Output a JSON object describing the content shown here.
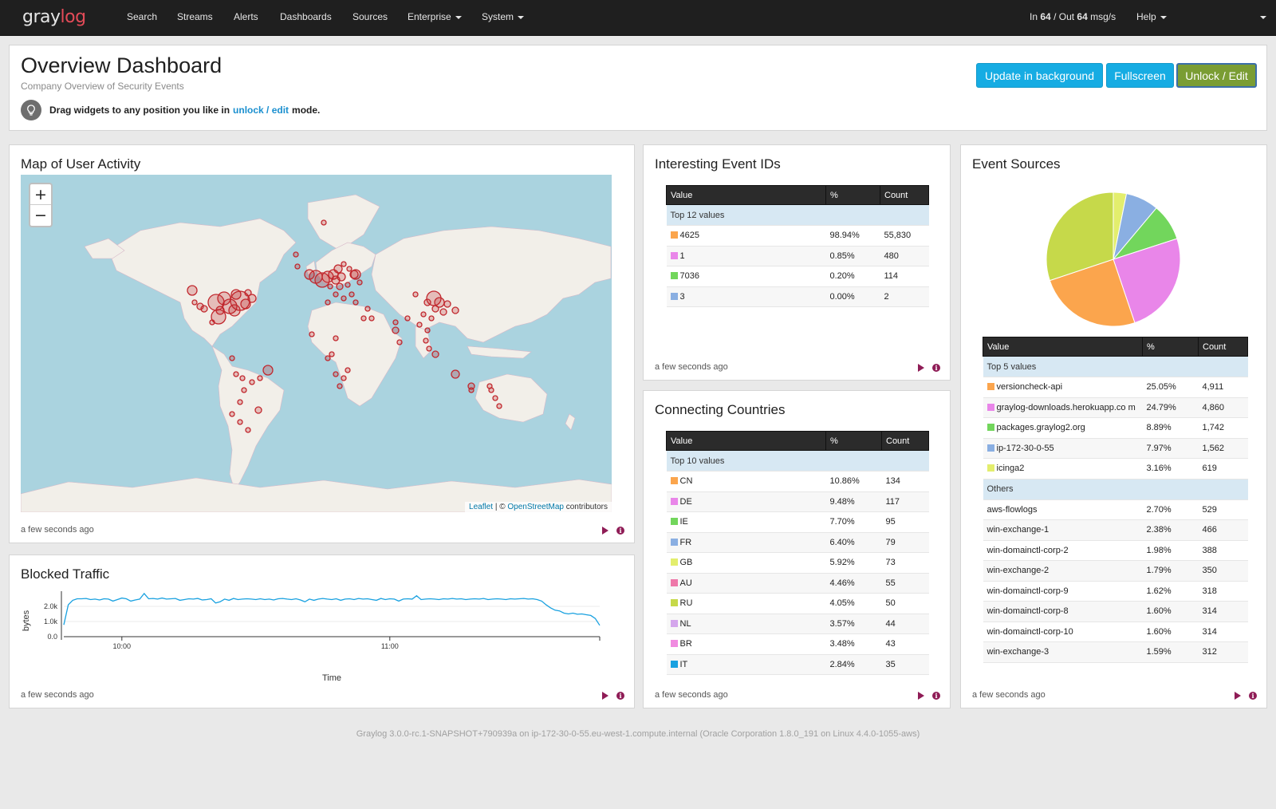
{
  "brand": {
    "part1": "gray",
    "part2": "log"
  },
  "nav": {
    "items": [
      "Search",
      "Streams",
      "Alerts",
      "Dashboards",
      "Sources",
      "Enterprise",
      "System"
    ],
    "throughput": {
      "in_label": "In",
      "in_value": "64",
      "out_label": "/ Out",
      "out_value": "64",
      "unit": "msg/s"
    },
    "help": "Help"
  },
  "header": {
    "title": "Overview Dashboard",
    "subtitle": "Company Overview of Security Events",
    "hint_pre": "Drag widgets to any position you like in",
    "hint_link": "unlock / edit",
    "hint_post": "mode.",
    "buttons": {
      "update": "Update in background",
      "fullscreen": "Fullscreen",
      "unlock": "Unlock / Edit"
    }
  },
  "colors": {
    "navbar": "#1f1f1f",
    "accent_info": "#16ace3",
    "accent_success": "#7a9d33",
    "brand_red": "#e44b58",
    "marker_red": "#c1272d",
    "action_purple": "#8f1c56",
    "swatches": [
      "#fba54d",
      "#e986e9",
      "#72d65c",
      "#8aafe2",
      "#e3ee6d",
      "#ee78a9",
      "#c6d94a",
      "#d4a6ec",
      "#f08be0",
      "#19a1e0"
    ]
  },
  "map_widget": {
    "title": "Map of User Activity",
    "zoom_in": "+",
    "zoom_out": "−",
    "attribution_link1": "Leaflet",
    "attribution_sep": "| ©",
    "attribution_link2": "OpenStreetMap",
    "attribution_post": "contributors",
    "updated": "a few seconds ago"
  },
  "traffic_widget": {
    "title": "Blocked Traffic",
    "updated": "a few seconds ago",
    "chart_data": {
      "type": "line",
      "ylabel": "bytes",
      "xlabel": "Time",
      "y_ticks": [
        "0.0",
        "1.0k",
        "2.0k"
      ],
      "x_ticks": [
        "10:00",
        "11:00"
      ],
      "ylim": [
        0,
        3000
      ],
      "x_range_minutes": [
        0,
        120
      ],
      "x_tick_minutes": [
        13,
        73
      ],
      "series": [
        {
          "values": [
            780,
            2100,
            2400,
            2500,
            2500,
            2520,
            2450,
            2480,
            2420,
            2500,
            2480,
            2350,
            2450,
            2550,
            2500,
            2350,
            2420,
            2480,
            2850,
            2500,
            2520,
            2480,
            2550,
            2480,
            2500,
            2520,
            2400,
            2450,
            2500,
            2480,
            2520,
            2420,
            2450,
            2500,
            2220,
            2300,
            2480,
            2400,
            2520,
            2450,
            2480,
            2500,
            2480,
            2450,
            2500,
            2450,
            2480,
            2420,
            2500,
            2520,
            2480,
            2450,
            2500,
            2420,
            2300,
            2480,
            2400,
            2480,
            2520,
            2480,
            2450,
            2500,
            2400,
            2480,
            2500,
            2450,
            2520,
            2480,
            2500,
            2450,
            2400,
            2520,
            2450,
            2500,
            2480,
            2350,
            2480,
            2500,
            2480,
            2700,
            2450,
            2480,
            2500,
            2480,
            2450,
            2500,
            2480,
            2520,
            2480,
            2500,
            2450,
            2480,
            2500,
            2480,
            2520,
            2450,
            2480,
            2500,
            2480,
            2450,
            2500,
            2480,
            2500,
            2520,
            2480,
            2500,
            2450,
            2350,
            2100,
            1900,
            1750,
            1700,
            1550,
            1500,
            1550,
            1480,
            1500,
            1450,
            1400,
            1200,
            750
          ]
        }
      ]
    }
  },
  "event_ids_widget": {
    "title": "Interesting Event IDs",
    "columns": [
      "Value",
      "%",
      "Count"
    ],
    "group_label": "Top 12 values",
    "rows": [
      {
        "value": "4625",
        "pct": "98.94%",
        "count": "55,830",
        "color": "#fba54d"
      },
      {
        "value": "1",
        "pct": "0.85%",
        "count": "480",
        "color": "#e986e9"
      },
      {
        "value": "7036",
        "pct": "0.20%",
        "count": "114",
        "color": "#72d65c"
      },
      {
        "value": "3",
        "pct": "0.00%",
        "count": "2",
        "color": "#8aafe2"
      }
    ],
    "updated": "a few seconds ago"
  },
  "countries_widget": {
    "title": "Connecting Countries",
    "columns": [
      "Value",
      "%",
      "Count"
    ],
    "group_label": "Top 10 values",
    "rows": [
      {
        "value": "CN",
        "pct": "10.86%",
        "count": "134",
        "color": "#fba54d"
      },
      {
        "value": "DE",
        "pct": "9.48%",
        "count": "117",
        "color": "#e986e9"
      },
      {
        "value": "IE",
        "pct": "7.70%",
        "count": "95",
        "color": "#72d65c"
      },
      {
        "value": "FR",
        "pct": "6.40%",
        "count": "79",
        "color": "#8aafe2"
      },
      {
        "value": "GB",
        "pct": "5.92%",
        "count": "73",
        "color": "#e3ee6d"
      },
      {
        "value": "AU",
        "pct": "4.46%",
        "count": "55",
        "color": "#ee78a9"
      },
      {
        "value": "RU",
        "pct": "4.05%",
        "count": "50",
        "color": "#c6d94a"
      },
      {
        "value": "NL",
        "pct": "3.57%",
        "count": "44",
        "color": "#d4a6ec"
      },
      {
        "value": "BR",
        "pct": "3.48%",
        "count": "43",
        "color": "#f08be0"
      },
      {
        "value": "IT",
        "pct": "2.84%",
        "count": "35",
        "color": "#19a1e0"
      }
    ],
    "updated": "a few seconds ago"
  },
  "sources_widget": {
    "title": "Event Sources",
    "columns": [
      "Value",
      "%",
      "Count"
    ],
    "group_label": "Top 5 values",
    "others_label": "Others",
    "chart_data": {
      "type": "pie",
      "slices": [
        {
          "label": "versioncheck-api",
          "value": 25.05,
          "color": "#fba54d"
        },
        {
          "label": "graylog-downloads.herokuapp.com",
          "value": 24.79,
          "color": "#e986e9"
        },
        {
          "label": "packages.graylog2.org",
          "value": 8.89,
          "color": "#72d65c"
        },
        {
          "label": "ip-172-30-0-55",
          "value": 7.97,
          "color": "#8aafe2"
        },
        {
          "label": "icinga2",
          "value": 3.16,
          "color": "#e3ee6d"
        },
        {
          "label": "Others",
          "value": 30.14,
          "color": "#c6d94a"
        }
      ]
    },
    "top_rows": [
      {
        "value": "versioncheck-api",
        "pct": "25.05%",
        "count": "4,911",
        "color": "#fba54d"
      },
      {
        "value": "graylog-downloads.herokuapp.co m",
        "pct": "24.79%",
        "count": "4,860",
        "color": "#e986e9"
      },
      {
        "value": "packages.graylog2.org",
        "pct": "8.89%",
        "count": "1,742",
        "color": "#72d65c"
      },
      {
        "value": "ip-172-30-0-55",
        "pct": "7.97%",
        "count": "1,562",
        "color": "#8aafe2"
      },
      {
        "value": "icinga2",
        "pct": "3.16%",
        "count": "619",
        "color": "#e3ee6d"
      }
    ],
    "other_rows": [
      {
        "value": "aws-flowlogs",
        "pct": "2.70%",
        "count": "529"
      },
      {
        "value": "win-exchange-1",
        "pct": "2.38%",
        "count": "466"
      },
      {
        "value": "win-domainctl-corp-2",
        "pct": "1.98%",
        "count": "388"
      },
      {
        "value": "win-exchange-2",
        "pct": "1.79%",
        "count": "350"
      },
      {
        "value": "win-domainctl-corp-9",
        "pct": "1.62%",
        "count": "318"
      },
      {
        "value": "win-domainctl-corp-8",
        "pct": "1.60%",
        "count": "314"
      },
      {
        "value": "win-domainctl-corp-10",
        "pct": "1.60%",
        "count": "314"
      },
      {
        "value": "win-exchange-3",
        "pct": "1.59%",
        "count": "312"
      }
    ],
    "updated": "a few seconds ago"
  },
  "footer": {
    "text": "Graylog 3.0.0-rc.1-SNAPSHOT+790939a on ip-172-30-0-55.eu-west-1.compute.internal (Oracle Corporation 1.8.0_191 on Linux 4.4.0-1055-aws)"
  }
}
